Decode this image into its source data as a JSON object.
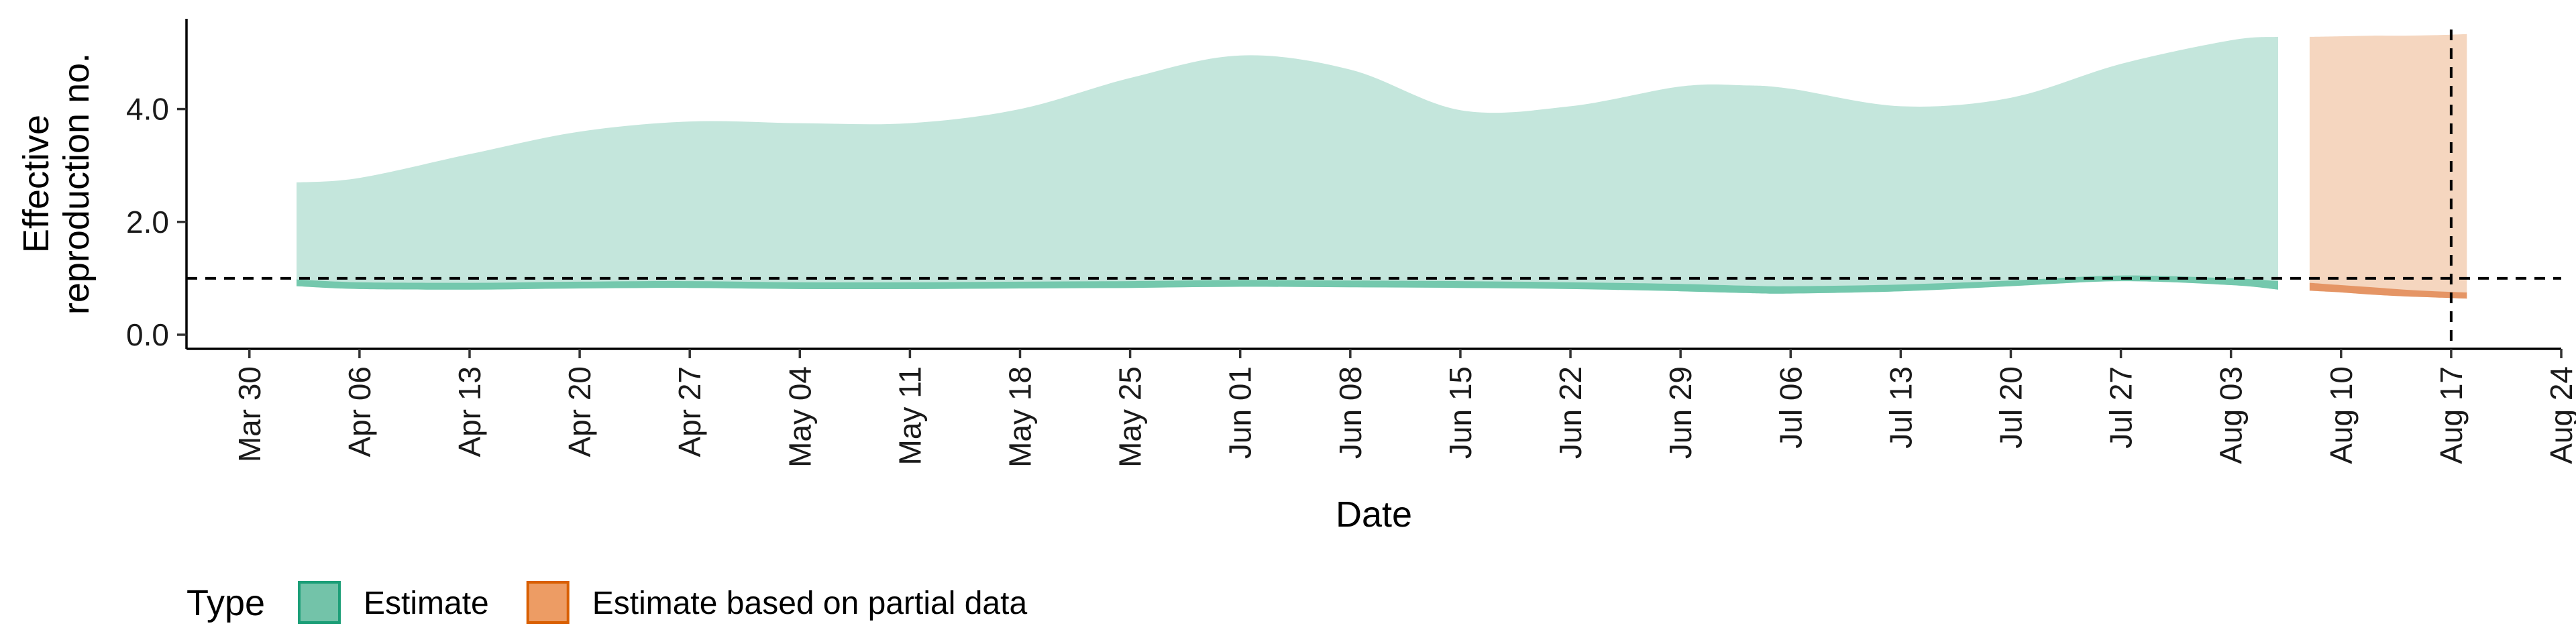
{
  "chart_data": {
    "type": "area",
    "xlabel": "Date",
    "ylabel_lines": [
      "Effective",
      "reproduction no."
    ],
    "ylim": [
      -0.25,
      5.6
    ],
    "yticks": [
      0,
      2,
      4
    ],
    "ytick_labels": [
      "0.0",
      "2.0",
      "4.0"
    ],
    "xlim": [
      "2020-03-26",
      "2020-08-24"
    ],
    "xticks": [
      "2020-03-30",
      "2020-04-06",
      "2020-04-13",
      "2020-04-20",
      "2020-04-27",
      "2020-05-04",
      "2020-05-11",
      "2020-05-18",
      "2020-05-25",
      "2020-06-01",
      "2020-06-08",
      "2020-06-15",
      "2020-06-22",
      "2020-06-29",
      "2020-07-06",
      "2020-07-13",
      "2020-07-20",
      "2020-07-27",
      "2020-08-03",
      "2020-08-10",
      "2020-08-17",
      "2020-08-24"
    ],
    "xtick_labels": [
      "Mar 30",
      "Apr 06",
      "Apr 13",
      "Apr 20",
      "Apr 27",
      "May 04",
      "May 11",
      "May 18",
      "May 25",
      "Jun 01",
      "Jun 08",
      "Jun 15",
      "Jun 22",
      "Jun 29",
      "Jul 06",
      "Jul 13",
      "Jul 20",
      "Jul 27",
      "Aug 03",
      "Aug 10",
      "Aug 17",
      "Aug 24"
    ],
    "reference_line_y": 1,
    "reference_line_x": "2020-08-17",
    "legend": {
      "title": "Type",
      "position": "bottom-left",
      "entries": [
        "Estimate",
        "Estimate based on partial data"
      ]
    },
    "series": [
      {
        "name": "Estimate",
        "color_fill": "#c4e6dc",
        "color_band": "#66c2a5",
        "color_key_fill": "#73c3a9",
        "color_key_border": "#1b9e77",
        "x": [
          "2020-04-02",
          "2020-04-06",
          "2020-04-13",
          "2020-04-20",
          "2020-04-27",
          "2020-05-04",
          "2020-05-11",
          "2020-05-18",
          "2020-05-25",
          "2020-06-01",
          "2020-06-08",
          "2020-06-15",
          "2020-06-22",
          "2020-06-29",
          "2020-07-03",
          "2020-07-06",
          "2020-07-13",
          "2020-07-20",
          "2020-07-27",
          "2020-08-03",
          "2020-08-06"
        ],
        "upper": [
          2.7,
          2.78,
          3.2,
          3.6,
          3.78,
          3.75,
          3.75,
          4.0,
          4.55,
          4.95,
          4.7,
          3.98,
          4.05,
          4.4,
          4.42,
          4.36,
          4.05,
          4.2,
          4.8,
          5.22,
          5.28
        ],
        "inner_upper": [
          0.98,
          0.93,
          0.92,
          0.94,
          0.95,
          0.93,
          0.93,
          0.94,
          0.95,
          0.97,
          0.96,
          0.95,
          0.93,
          0.9,
          0.87,
          0.86,
          0.89,
          0.96,
          1.05,
          1.0,
          0.95
        ],
        "inner_lower": [
          0.86,
          0.81,
          0.8,
          0.82,
          0.83,
          0.81,
          0.81,
          0.82,
          0.83,
          0.85,
          0.84,
          0.83,
          0.81,
          0.77,
          0.74,
          0.73,
          0.77,
          0.86,
          0.95,
          0.88,
          0.8
        ],
        "lower": [
          0.86,
          0.81,
          0.8,
          0.82,
          0.83,
          0.81,
          0.81,
          0.82,
          0.83,
          0.85,
          0.84,
          0.83,
          0.81,
          0.77,
          0.74,
          0.73,
          0.77,
          0.86,
          0.95,
          0.88,
          0.8
        ]
      },
      {
        "name": "Estimate based on partial data",
        "color_fill": "#f5d6bf",
        "color_band": "#e28a55",
        "color_key_fill": "#ed9c64",
        "color_key_border": "#d95f02",
        "x": [
          "2020-08-08",
          "2020-08-10",
          "2020-08-12",
          "2020-08-14",
          "2020-08-16",
          "2020-08-18"
        ],
        "upper": [
          5.28,
          5.29,
          5.3,
          5.3,
          5.31,
          5.33
        ],
        "inner_upper": [
          0.92,
          0.88,
          0.84,
          0.8,
          0.77,
          0.75
        ],
        "inner_lower": [
          0.78,
          0.75,
          0.71,
          0.68,
          0.66,
          0.64
        ],
        "lower": [
          0.78,
          0.75,
          0.71,
          0.68,
          0.66,
          0.64
        ]
      }
    ]
  }
}
